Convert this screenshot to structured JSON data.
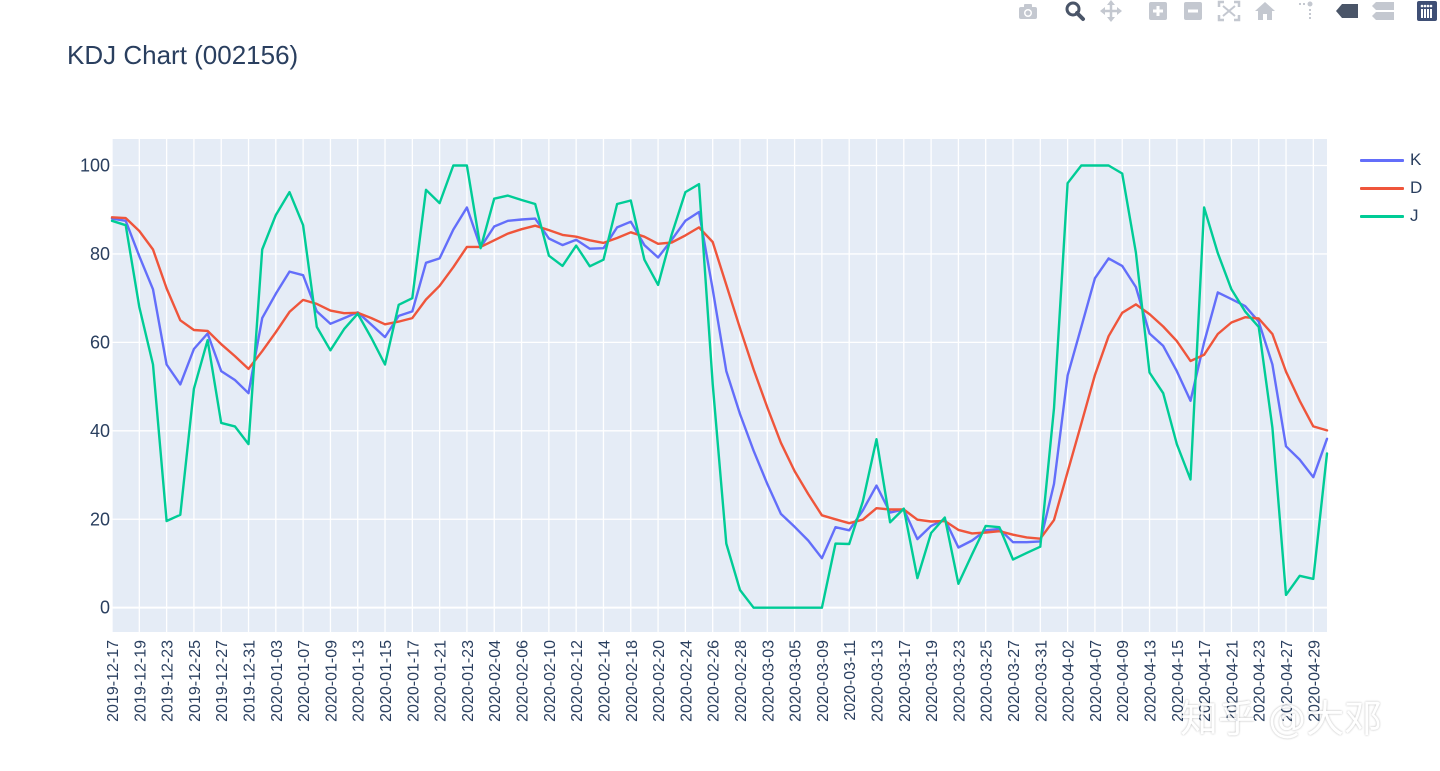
{
  "modebar": {
    "buttons": [
      {
        "icon": "camera-icon",
        "label": "Download plot as png"
      },
      {
        "icon": "zoom-icon",
        "label": "Zoom"
      },
      {
        "icon": "pan-icon",
        "label": "Pan"
      },
      {
        "icon": "zoom-in-icon",
        "label": "Zoom in"
      },
      {
        "icon": "zoom-out-icon",
        "label": "Zoom out"
      },
      {
        "icon": "autoscale-icon",
        "label": "Autoscale"
      },
      {
        "icon": "home-icon",
        "label": "Reset axes"
      },
      {
        "icon": "spike-lines-icon",
        "label": "Toggle spike lines"
      },
      {
        "icon": "hover-closest-icon",
        "label": "Show closest data on hover"
      },
      {
        "icon": "hover-compare-icon",
        "label": "Compare data on hover"
      },
      {
        "icon": "plotly-logo-icon",
        "label": "Produced with Plotly"
      }
    ],
    "icon_color": "#c4c8d0",
    "active_color": "#4a5568",
    "logo_color": "#3f4f75"
  },
  "watermark": "知乎 @大邓",
  "chart_data": {
    "type": "line",
    "title": "KDJ Chart (002156)",
    "xlabel": "",
    "ylabel": "",
    "ylim": [
      -5.5,
      106
    ],
    "yticks": [
      0,
      20,
      40,
      60,
      80,
      100
    ],
    "grid": true,
    "legend_position": "top-right",
    "plot_bgcolor": "#e5ecf6",
    "x": [
      "2019-12-17",
      "2019-12-18",
      "2019-12-19",
      "2019-12-20",
      "2019-12-23",
      "2019-12-24",
      "2019-12-25",
      "2019-12-26",
      "2019-12-27",
      "2019-12-30",
      "2019-12-31",
      "2020-01-02",
      "2020-01-03",
      "2020-01-06",
      "2020-01-07",
      "2020-01-08",
      "2020-01-09",
      "2020-01-10",
      "2020-01-13",
      "2020-01-14",
      "2020-01-15",
      "2020-01-16",
      "2020-01-17",
      "2020-01-20",
      "2020-01-21",
      "2020-01-22",
      "2020-01-23",
      "2020-02-03",
      "2020-02-04",
      "2020-02-05",
      "2020-02-06",
      "2020-02-07",
      "2020-02-10",
      "2020-02-11",
      "2020-02-12",
      "2020-02-13",
      "2020-02-14",
      "2020-02-17",
      "2020-02-18",
      "2020-02-19",
      "2020-02-20",
      "2020-02-21",
      "2020-02-24",
      "2020-02-25",
      "2020-02-26",
      "2020-02-27",
      "2020-02-28",
      "2020-03-02",
      "2020-03-03",
      "2020-03-04",
      "2020-03-05",
      "2020-03-06",
      "2020-03-09",
      "2020-03-10",
      "2020-03-11",
      "2020-03-12",
      "2020-03-13",
      "2020-03-16",
      "2020-03-17",
      "2020-03-18",
      "2020-03-19",
      "2020-03-20",
      "2020-03-23",
      "2020-03-24",
      "2020-03-25",
      "2020-03-26",
      "2020-03-27",
      "2020-03-30",
      "2020-03-31",
      "2020-04-01",
      "2020-04-02",
      "2020-04-03",
      "2020-04-07",
      "2020-04-08",
      "2020-04-09",
      "2020-04-10",
      "2020-04-13",
      "2020-04-14",
      "2020-04-15",
      "2020-04-16",
      "2020-04-17",
      "2020-04-20",
      "2020-04-21",
      "2020-04-22",
      "2020-04-23",
      "2020-04-24",
      "2020-04-27",
      "2020-04-28",
      "2020-04-29",
      "2020-04-30"
    ],
    "xtick_labels": [
      "2019-12-17",
      "2019-12-19",
      "2019-12-23",
      "2019-12-25",
      "2019-12-27",
      "2019-12-31",
      "2020-01-03",
      "2020-01-07",
      "2020-01-09",
      "2020-01-13",
      "2020-01-15",
      "2020-01-17",
      "2020-01-21",
      "2020-01-23",
      "2020-02-04",
      "2020-02-06",
      "2020-02-10",
      "2020-02-12",
      "2020-02-14",
      "2020-02-18",
      "2020-02-20",
      "2020-02-24",
      "2020-02-26",
      "2020-02-28",
      "2020-03-03",
      "2020-03-05",
      "2020-03-09",
      "2020-03-11",
      "2020-03-13",
      "2020-03-17",
      "2020-03-19",
      "2020-03-23",
      "2020-03-25",
      "2020-03-27",
      "2020-03-31",
      "2020-04-02",
      "2020-04-07",
      "2020-04-09",
      "2020-04-13",
      "2020-04-15",
      "2020-04-17",
      "2020-04-21",
      "2020-04-23",
      "2020-04-27",
      "2020-04-29"
    ],
    "series": [
      {
        "name": "K",
        "color": "#636efa",
        "values": [
          88,
          87.5,
          79.5,
          72,
          55,
          50.5,
          58.5,
          62,
          53.5,
          51.5,
          48.5,
          65.5,
          71,
          76,
          75.2,
          67,
          64.2,
          65.5,
          66.8,
          64,
          61.2,
          66,
          67,
          78,
          79,
          85.5,
          90.5,
          81.5,
          86.2,
          87.5,
          87.8,
          88,
          83.5,
          82,
          83.2,
          81.2,
          81.3,
          86,
          87.3,
          82,
          79.2,
          83.2,
          87.5,
          89.5,
          72,
          53.5,
          43.8,
          35.5,
          28,
          21.2,
          18.3,
          15.2,
          11.2,
          18.2,
          17.5,
          22,
          27.6,
          21.5,
          22.2,
          15.5,
          18.5,
          20,
          13.6,
          15.2,
          17.5,
          17.8,
          14.8,
          14.8,
          15,
          28,
          52.5,
          63.5,
          74.5,
          79,
          77.3,
          72.5,
          62,
          59.2,
          53.5,
          46.8,
          60,
          71.3,
          69.8,
          68.2,
          64.7,
          55,
          36.5,
          33.5,
          29.5,
          38.2
        ]
      },
      {
        "name": "D",
        "color": "#ef553b",
        "values": [
          88.3,
          88.1,
          85.2,
          81,
          72.2,
          65,
          62.8,
          62.6,
          59.6,
          56.9,
          54,
          58,
          62.3,
          66.9,
          69.6,
          68.7,
          67.2,
          66.6,
          66.7,
          65.5,
          64.1,
          64.7,
          65.5,
          69.7,
          72.8,
          77,
          81.6,
          81.6,
          83.1,
          84.6,
          85.6,
          86.4,
          85.4,
          84.3,
          83.9,
          83.1,
          82.5,
          83.6,
          84.9,
          83.9,
          82.3,
          82.6,
          84.2,
          86,
          82.7,
          73,
          63.2,
          53.9,
          45.3,
          37.3,
          30.9,
          25.7,
          20.9,
          20,
          19.1,
          19.9,
          22.5,
          22.2,
          22.2,
          19.9,
          19.5,
          19.6,
          17.6,
          16.8,
          17,
          17.3,
          16.5,
          15.9,
          15.6,
          19.8,
          30.7,
          41.6,
          52.6,
          61.4,
          66.7,
          68.6,
          66.4,
          63.6,
          60.3,
          55.8,
          57.2,
          61.9,
          64.5,
          65.7,
          65.4,
          61.9,
          53.4,
          46.8,
          41,
          40.1
        ]
      },
      {
        "name": "J",
        "color": "#00cc96",
        "values": [
          87.5,
          86.5,
          68,
          55,
          19.6,
          21,
          49.5,
          60.5,
          41.8,
          41,
          37,
          81,
          88.8,
          94,
          86.5,
          63.5,
          58.2,
          63,
          66.5,
          61,
          55,
          68.5,
          70,
          94.5,
          91.5,
          100,
          100,
          81.3,
          92.5,
          93.2,
          92.2,
          91.3,
          79.6,
          77.3,
          81.9,
          77.2,
          78.7,
          91.3,
          92.1,
          78.7,
          73,
          84.4,
          94,
          95.8,
          50.6,
          14.5,
          4,
          0,
          0,
          0,
          0,
          0,
          0,
          14.5,
          14.4,
          24,
          38.1,
          19.3,
          22.4,
          6.7,
          16.9,
          20.4,
          5.4,
          12.1,
          18.5,
          18.2,
          10.9,
          12.4,
          13.8,
          45.1,
          96,
          100,
          100,
          100,
          98.2,
          80.3,
          53.2,
          48.5,
          37,
          29,
          90.5,
          80.2,
          72,
          67,
          63.5,
          40.7,
          2.9,
          7.2,
          6.5,
          34.9
        ]
      }
    ]
  }
}
